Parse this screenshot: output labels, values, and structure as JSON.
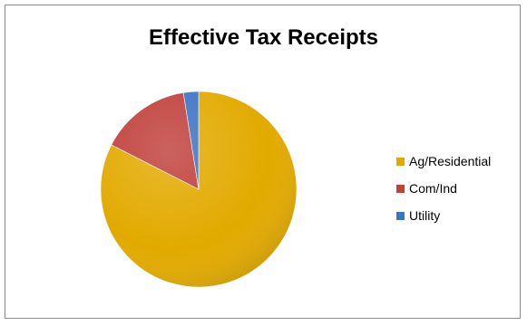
{
  "chart_data": {
    "type": "pie",
    "title": "Effective Tax Receipts",
    "categories": [
      "Ag/Residential",
      "Com/Ind",
      "Utility"
    ],
    "values": [
      82.5,
      15.0,
      2.5
    ],
    "colors": {
      "Ag/Residential": "#E2AA00",
      "Com/Ind": "#C0403B",
      "Utility": "#3E74C4"
    },
    "legend": "right",
    "start_angle_deg": 0,
    "direction": "clockwise"
  }
}
